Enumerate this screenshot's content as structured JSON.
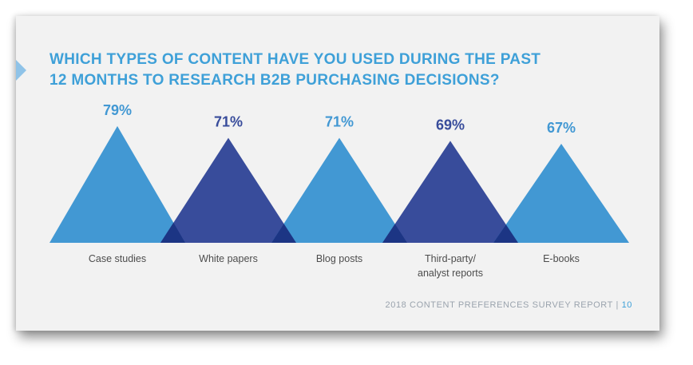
{
  "title_lines": [
    "WHICH TYPES OF CONTENT HAVE YOU USED DURING THE PAST",
    "12 MONTHS TO RESEARCH B2B PURCHASING DECISIONS?"
  ],
  "footer": {
    "report": "2018 CONTENT PREFERENCES SURVEY REPORT",
    "separator": "|",
    "page": "10"
  },
  "colors": {
    "light": "#4298d3",
    "dark": "#384c9b",
    "overlap": "#1c3584",
    "title": "#3ea0d8"
  },
  "chart_data": {
    "type": "bar",
    "categories": [
      [
        "Case studies"
      ],
      [
        "White papers"
      ],
      [
        "Blog posts"
      ],
      [
        "Third-party/",
        "analyst reports"
      ],
      [
        "E-books"
      ]
    ],
    "values": [
      79,
      71,
      71,
      69,
      67
    ],
    "value_labels": [
      "79%",
      "71%",
      "71%",
      "69%",
      "67%"
    ],
    "ylim": [
      0,
      100
    ]
  }
}
